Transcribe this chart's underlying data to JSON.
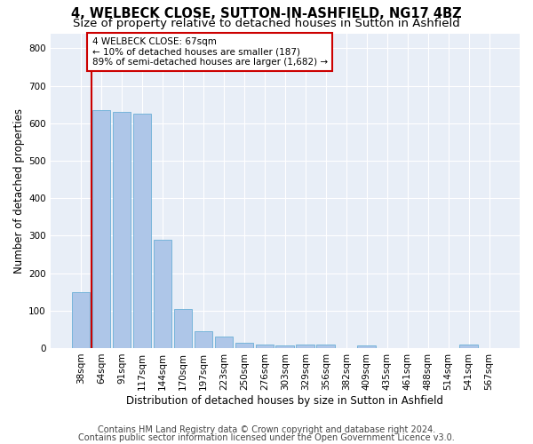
{
  "title1": "4, WELBECK CLOSE, SUTTON-IN-ASHFIELD, NG17 4BZ",
  "title2": "Size of property relative to detached houses in Sutton in Ashfield",
  "xlabel": "Distribution of detached houses by size in Sutton in Ashfield",
  "ylabel": "Number of detached properties",
  "categories": [
    "38sqm",
    "64sqm",
    "91sqm",
    "117sqm",
    "144sqm",
    "170sqm",
    "197sqm",
    "223sqm",
    "250sqm",
    "276sqm",
    "303sqm",
    "329sqm",
    "356sqm",
    "382sqm",
    "409sqm",
    "435sqm",
    "461sqm",
    "488sqm",
    "514sqm",
    "541sqm",
    "567sqm"
  ],
  "values": [
    150,
    635,
    630,
    625,
    290,
    103,
    44,
    31,
    13,
    9,
    8,
    10,
    10,
    0,
    7,
    0,
    0,
    0,
    0,
    10,
    0
  ],
  "bar_color": "#aec6e8",
  "bar_edge_color": "#6aafd6",
  "annotation_text": "4 WELBECK CLOSE: 67sqm\n← 10% of detached houses are smaller (187)\n89% of semi-detached houses are larger (1,682) →",
  "annotation_box_color": "#ffffff",
  "annotation_box_edge_color": "#cc0000",
  "vline_color": "#cc0000",
  "vline_x": 0.5,
  "ylim": [
    0,
    840
  ],
  "yticks": [
    0,
    100,
    200,
    300,
    400,
    500,
    600,
    700,
    800
  ],
  "footer1": "Contains HM Land Registry data © Crown copyright and database right 2024.",
  "footer2": "Contains public sector information licensed under the Open Government Licence v3.0.",
  "plot_bg_color": "#e8eef7",
  "title1_fontsize": 10.5,
  "title2_fontsize": 9.5,
  "axis_fontsize": 8.5,
  "tick_fontsize": 7.5,
  "footer_fontsize": 7
}
